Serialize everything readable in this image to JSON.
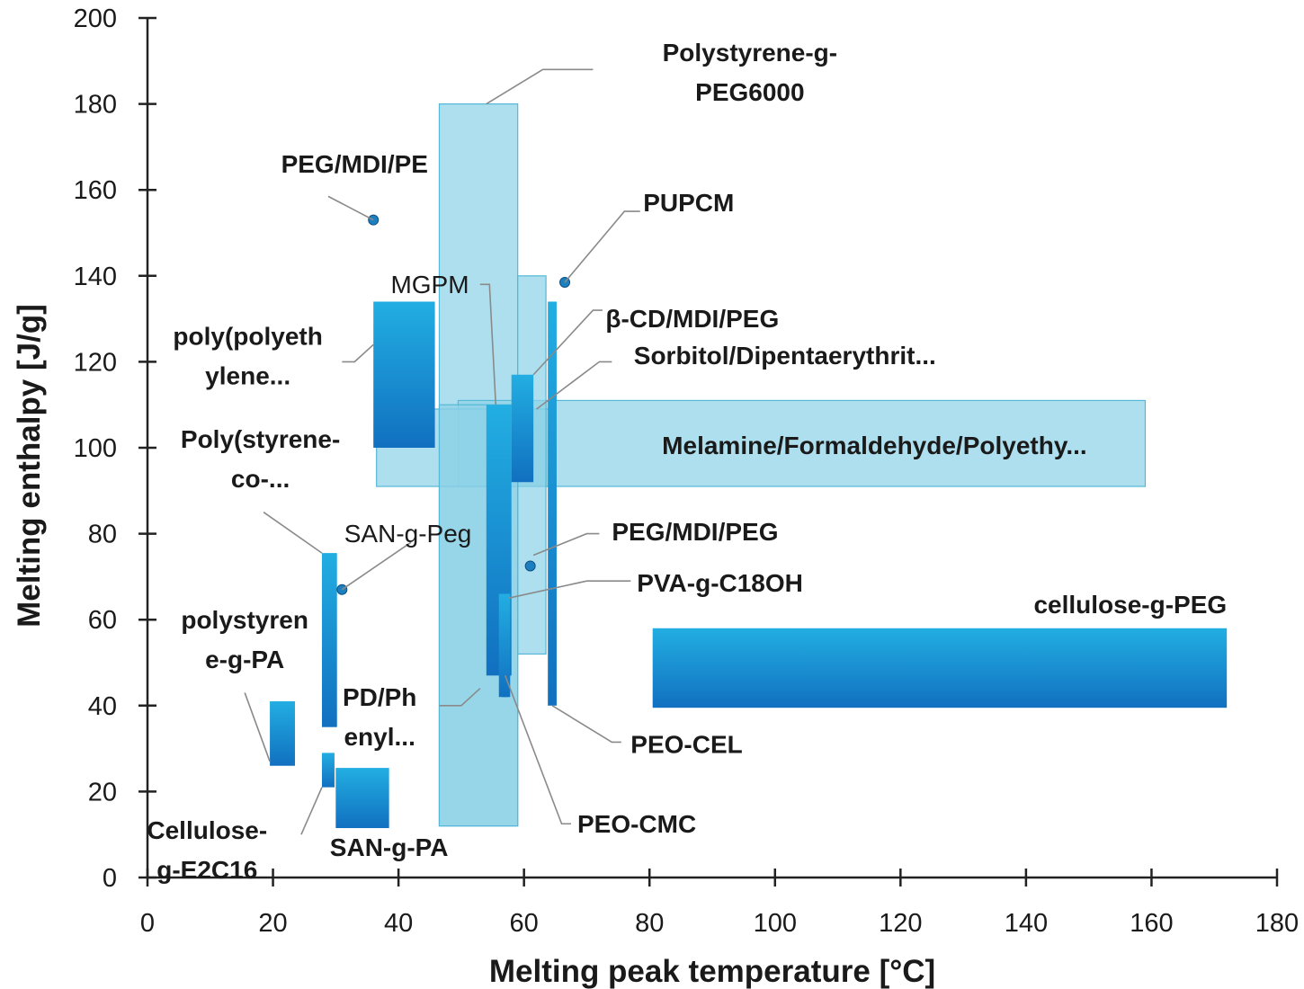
{
  "chart_data": {
    "type": "range-box",
    "xlabel": "Melting peak temperature [°C]",
    "ylabel": "Melting enthalpy [J/g]",
    "xlim": [
      0,
      180
    ],
    "ylim": [
      0,
      200
    ],
    "xticks": [
      0,
      20,
      40,
      60,
      80,
      100,
      120,
      140,
      160,
      180
    ],
    "yticks": [
      0,
      20,
      40,
      60,
      80,
      100,
      120,
      140,
      160,
      180,
      200
    ],
    "grid": false,
    "legend": "none",
    "colors": {
      "light": "#8fd3e8",
      "dark_top": "#22aee2",
      "dark_bottom": "#1170c0",
      "point": "#1b7fc0"
    },
    "series": [
      {
        "name": "Polystyrene-g-PEG6000",
        "shape": "box",
        "style": "light",
        "x": [
          46.5,
          59
        ],
        "y": [
          12,
          180
        ]
      },
      {
        "name": "Melamine/Formaldehyde/Polyethy...",
        "shape": "box",
        "style": "light",
        "x": [
          49.5,
          159
        ],
        "y": [
          91,
          111
        ]
      },
      {
        "name": "Sorbitol/Dipentaerythrit...",
        "shape": "box",
        "style": "light",
        "x": [
          36.5,
          64
        ],
        "y": [
          91,
          109
        ]
      },
      {
        "name": "PEG/MDI/PEG",
        "shape": "box",
        "style": "light",
        "x": [
          59,
          63.5
        ],
        "y": [
          52,
          140
        ]
      },
      {
        "name": "poly(polyethylene...",
        "shape": "box",
        "style": "dark",
        "x": [
          36,
          45.8
        ],
        "y": [
          100,
          134
        ]
      },
      {
        "name": "MGPM",
        "shape": "box",
        "style": "dark",
        "x": [
          54,
          58
        ],
        "y": [
          47,
          110
        ]
      },
      {
        "name": "β-CD/MDI/PEG",
        "shape": "box",
        "style": "dark",
        "x": [
          58,
          61.5
        ],
        "y": [
          92,
          117
        ]
      },
      {
        "name": "PEO-CEL",
        "shape": "box",
        "style": "dark",
        "x": [
          63.8,
          65.2
        ],
        "y": [
          40,
          134
        ]
      },
      {
        "name": "PVA-g-C18OH",
        "shape": "box",
        "style": "dark",
        "x": [
          56,
          57.8
        ],
        "y": [
          42,
          66
        ]
      },
      {
        "name": "PEO-CMC",
        "shape": "box",
        "style": "dark",
        "x": [
          56.5,
          57.5
        ],
        "y": [
          42,
          66
        ]
      },
      {
        "name": "Poly(styrene-co-...",
        "shape": "box",
        "style": "dark",
        "x": [
          27.8,
          30.2
        ],
        "y": [
          35,
          75.5
        ]
      },
      {
        "name": "polystyrene-g-PA",
        "shape": "box",
        "style": "dark",
        "x": [
          19.5,
          23.5
        ],
        "y": [
          26,
          41
        ]
      },
      {
        "name": "Cellulose-g-E2C16",
        "shape": "box",
        "style": "dark",
        "x": [
          27.8,
          29.8
        ],
        "y": [
          21,
          29
        ]
      },
      {
        "name": "SAN-g-PA",
        "shape": "box",
        "style": "dark",
        "x": [
          30,
          38.5
        ],
        "y": [
          11.5,
          25.5
        ]
      },
      {
        "name": "cellulose-g-PEG",
        "shape": "box",
        "style": "dark",
        "x": [
          80.5,
          172
        ],
        "y": [
          39.5,
          58
        ]
      },
      {
        "name": "PD/Phenyl...",
        "shape": "box",
        "style": "light",
        "x": [
          46.5,
          59
        ],
        "y": [
          12,
          110
        ]
      },
      {
        "name": "PEG/MDI/PE",
        "shape": "point",
        "x": 36,
        "y": 153
      },
      {
        "name": "PUPCM",
        "shape": "point",
        "x": 66.5,
        "y": 138.5
      },
      {
        "name": "SAN-g-Peg",
        "shape": "point",
        "x": 31,
        "y": 67
      },
      {
        "name": "PEG/MDI/PEG point",
        "shape": "point",
        "x": 61,
        "y": 72.5
      }
    ],
    "annotations": [
      {
        "lines": [
          "Polystyrene-g-",
          "PEG6000"
        ],
        "bold": true,
        "at": [
          96,
          190
        ],
        "align": "middle",
        "leader": [
          [
            54,
            180
          ],
          [
            63,
            188
          ],
          [
            71,
            188
          ]
        ]
      },
      {
        "lines": [
          "PEG/MDI/PE"
        ],
        "bold": true,
        "at": [
          33,
          164
        ],
        "align": "middle",
        "leader": [
          [
            28.8,
            158.5
          ],
          [
            36,
            153
          ]
        ]
      },
      {
        "lines": [
          "PUPCM"
        ],
        "bold": true,
        "at": [
          79,
          155
        ],
        "align": "start",
        "leader": [
          [
            66.5,
            138.5
          ],
          [
            76,
            155
          ],
          [
            78.5,
            155
          ]
        ]
      },
      {
        "lines": [
          "MGPM"
        ],
        "bold": false,
        "at": [
          45,
          136
        ],
        "align": "middle",
        "leader": [
          [
            53,
            138
          ],
          [
            54.5,
            138
          ],
          [
            55.5,
            110
          ]
        ]
      },
      {
        "lines": [
          "β-CD/MDI/PEG"
        ],
        "bold": true,
        "at": [
          73,
          128
        ],
        "align": "start",
        "leader": [
          [
            72.5,
            132
          ],
          [
            71,
            132
          ],
          [
            61.5,
            117
          ]
        ]
      },
      {
        "lines": [
          "Sorbitol/Dipentaerythrit..."
        ],
        "bold": true,
        "at": [
          77.5,
          119.5
        ],
        "align": "start",
        "leader": [
          [
            74,
            120
          ],
          [
            72,
            120
          ],
          [
            62,
            109
          ]
        ]
      },
      {
        "lines": [
          "poly(polyeth",
          "ylene..."
        ],
        "bold": true,
        "at": [
          16,
          124
        ],
        "align": "middle",
        "leader": [
          [
            31,
            120
          ],
          [
            33,
            120
          ],
          [
            36,
            124
          ]
        ]
      },
      {
        "lines": [
          "Melamine/Formaldehyde/Polyethy..."
        ],
        "bold": true,
        "at": [
          82,
          98.5
        ],
        "align": "start",
        "leader": null
      },
      {
        "lines": [
          "Poly(styrene-",
          "co-..."
        ],
        "bold": true,
        "at": [
          18,
          100
        ],
        "align": "middle",
        "leader": [
          [
            18.5,
            85
          ],
          [
            27.8,
            75.5
          ]
        ]
      },
      {
        "lines": [
          "SAN-g-Peg"
        ],
        "bold": false,
        "at": [
          41.5,
          78
        ],
        "align": "middle",
        "leader": [
          [
            42,
            78
          ],
          [
            31,
            67
          ]
        ]
      },
      {
        "lines": [
          "PEG/MDI/PEG"
        ],
        "bold": true,
        "at": [
          74,
          78.5
        ],
        "align": "start",
        "leader": [
          [
            72,
            80
          ],
          [
            70,
            80
          ],
          [
            61.5,
            75
          ]
        ]
      },
      {
        "lines": [
          "PVA-g-C18OH"
        ],
        "bold": true,
        "at": [
          78,
          66.5
        ],
        "align": "start",
        "leader": [
          [
            77,
            69
          ],
          [
            70,
            69
          ],
          [
            57.5,
            65
          ]
        ]
      },
      {
        "lines": [
          "cellulose-g-PEG"
        ],
        "bold": true,
        "at": [
          172,
          61.5
        ],
        "align": "end",
        "leader": null
      },
      {
        "lines": [
          "polystyren",
          "e-g-PA"
        ],
        "bold": true,
        "at": [
          15.5,
          58
        ],
        "align": "middle",
        "leader": [
          [
            15.5,
            43
          ],
          [
            19.5,
            27
          ]
        ]
      },
      {
        "lines": [
          "PD/Ph",
          "enyl..."
        ],
        "bold": true,
        "at": [
          37,
          40
        ],
        "align": "middle",
        "leader": [
          [
            46.5,
            40
          ],
          [
            50,
            40
          ],
          [
            53,
            44
          ]
        ]
      },
      {
        "lines": [
          "PEO-CEL"
        ],
        "bold": true,
        "at": [
          77,
          29
        ],
        "align": "start",
        "leader": [
          [
            75.5,
            31.5
          ],
          [
            74,
            31.5
          ],
          [
            64.5,
            40
          ]
        ]
      },
      {
        "lines": [
          "Cellulose-",
          "g-E2C16"
        ],
        "bold": true,
        "at": [
          9.5,
          9
        ],
        "align": "middle",
        "leader": [
          [
            24.5,
            10
          ],
          [
            27.8,
            21
          ]
        ]
      },
      {
        "lines": [
          "SAN-g-PA"
        ],
        "bold": true,
        "at": [
          38.5,
          5
        ],
        "align": "middle",
        "leader": null
      },
      {
        "lines": [
          "PEO-CMC"
        ],
        "bold": true,
        "at": [
          68.5,
          10.5
        ],
        "align": "start",
        "leader": [
          [
            67.5,
            12.5
          ],
          [
            66,
            12.5
          ],
          [
            57,
            47
          ]
        ]
      }
    ]
  }
}
